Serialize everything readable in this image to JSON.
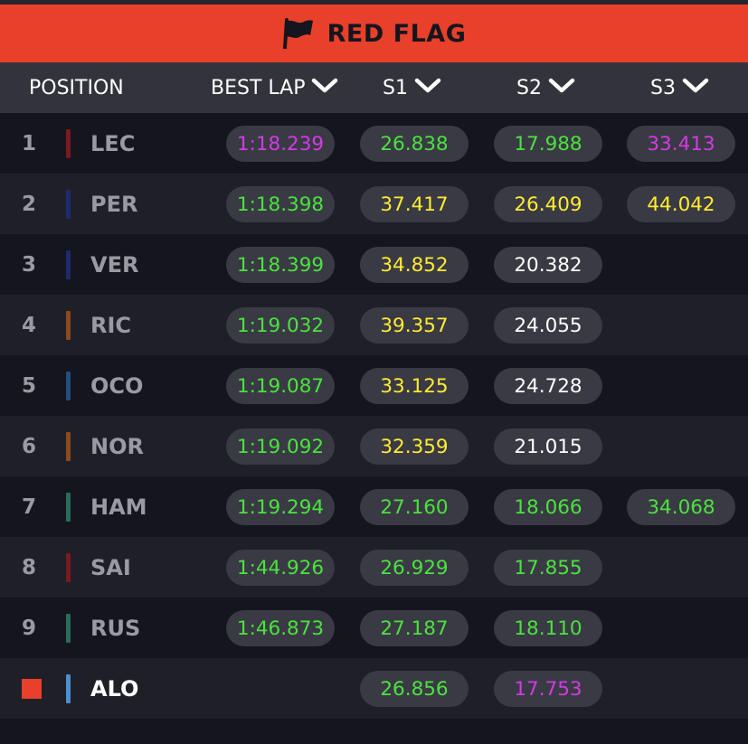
{
  "banner": {
    "status": "RED FLAG",
    "icon": "flag-icon"
  },
  "header": {
    "position": "POSITION",
    "best_lap": "BEST LAP",
    "s1": "S1",
    "s2": "S2",
    "s3": "S3"
  },
  "colors": {
    "banner_bg": "#e8402a",
    "green": "#4ae33e",
    "purple": "#d23be5",
    "yellow": "#ffec32",
    "white": "#ffffff"
  },
  "rows": [
    {
      "pos": "1",
      "driver": "LEC",
      "team_color": "#7a1a1f",
      "best": {
        "v": "1:18.239",
        "c": "purple"
      },
      "s1": {
        "v": "26.838",
        "c": "green"
      },
      "s2": {
        "v": "17.988",
        "c": "green"
      },
      "s3": {
        "v": "33.413",
        "c": "purple"
      }
    },
    {
      "pos": "2",
      "driver": "PER",
      "team_color": "#1d2b6e",
      "best": {
        "v": "1:18.398",
        "c": "green"
      },
      "s1": {
        "v": "37.417",
        "c": "yellow"
      },
      "s2": {
        "v": "26.409",
        "c": "yellow"
      },
      "s3": {
        "v": "44.042",
        "c": "yellow"
      }
    },
    {
      "pos": "3",
      "driver": "VER",
      "team_color": "#1d2b6e",
      "best": {
        "v": "1:18.399",
        "c": "green"
      },
      "s1": {
        "v": "34.852",
        "c": "yellow"
      },
      "s2": {
        "v": "20.382",
        "c": "white"
      },
      "s3": null
    },
    {
      "pos": "4",
      "driver": "RIC",
      "team_color": "#8a4a1c",
      "best": {
        "v": "1:19.032",
        "c": "green"
      },
      "s1": {
        "v": "39.357",
        "c": "yellow"
      },
      "s2": {
        "v": "24.055",
        "c": "white"
      },
      "s3": null
    },
    {
      "pos": "5",
      "driver": "OCO",
      "team_color": "#1f4f80",
      "best": {
        "v": "1:19.087",
        "c": "green"
      },
      "s1": {
        "v": "33.125",
        "c": "yellow"
      },
      "s2": {
        "v": "24.728",
        "c": "white"
      },
      "s3": null
    },
    {
      "pos": "6",
      "driver": "NOR",
      "team_color": "#8a4a1c",
      "best": {
        "v": "1:19.092",
        "c": "green"
      },
      "s1": {
        "v": "32.359",
        "c": "yellow"
      },
      "s2": {
        "v": "21.015",
        "c": "white"
      },
      "s3": null
    },
    {
      "pos": "7",
      "driver": "HAM",
      "team_color": "#2a6b5a",
      "best": {
        "v": "1:19.294",
        "c": "green"
      },
      "s1": {
        "v": "27.160",
        "c": "green"
      },
      "s2": {
        "v": "18.066",
        "c": "green"
      },
      "s3": {
        "v": "34.068",
        "c": "green"
      }
    },
    {
      "pos": "8",
      "driver": "SAI",
      "team_color": "#7a1a1f",
      "best": {
        "v": "1:44.926",
        "c": "green"
      },
      "s1": {
        "v": "26.929",
        "c": "green"
      },
      "s2": {
        "v": "17.855",
        "c": "green"
      },
      "s3": null
    },
    {
      "pos": "9",
      "driver": "RUS",
      "team_color": "#2a6b5a",
      "best": {
        "v": "1:46.873",
        "c": "green"
      },
      "s1": {
        "v": "27.187",
        "c": "green"
      },
      "s2": {
        "v": "18.110",
        "c": "green"
      },
      "s3": null
    },
    {
      "pos": "",
      "driver": "ALO",
      "team_color": "#4a90d0",
      "marker": true,
      "active": true,
      "best": null,
      "s1": {
        "v": "26.856",
        "c": "green"
      },
      "s2": {
        "v": "17.753",
        "c": "purple"
      },
      "s3": null
    }
  ]
}
